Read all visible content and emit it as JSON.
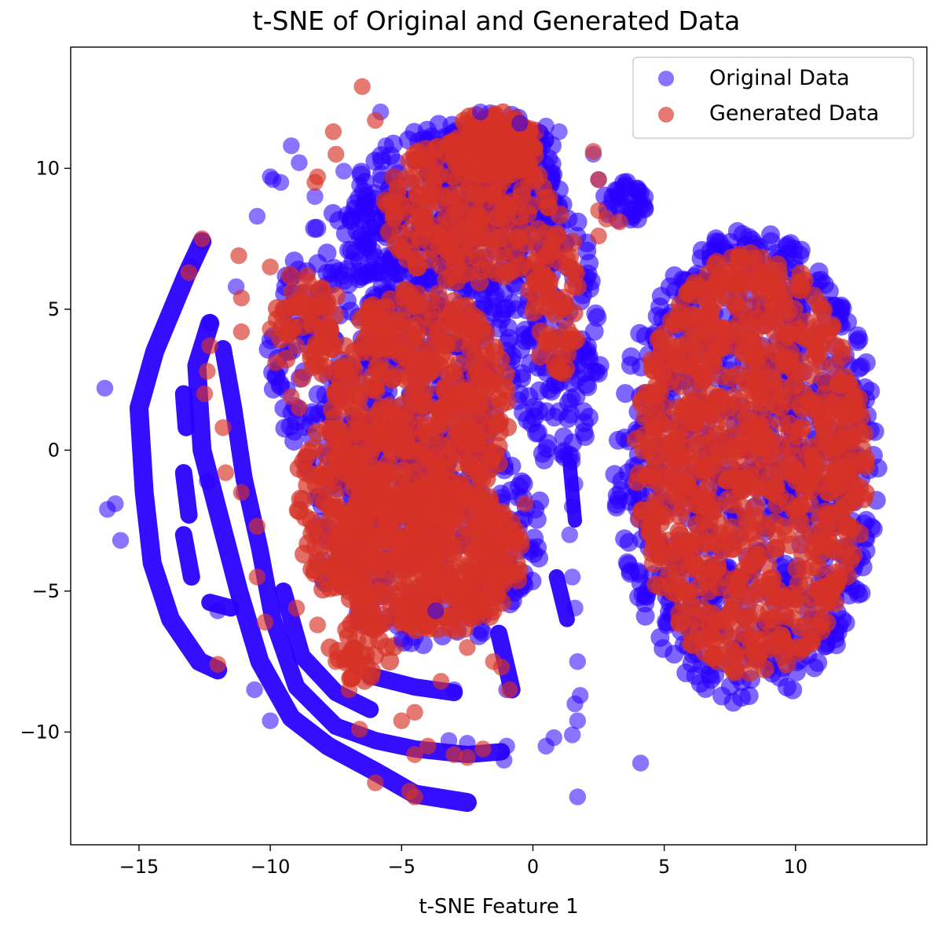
{
  "chart_data": {
    "type": "scatter",
    "title": "t-SNE of Original and Generated Data",
    "xlabel": "t-SNE Feature 1",
    "ylabel": "",
    "xlim": [
      -17.6,
      15.0
    ],
    "ylim": [
      -14.0,
      14.3
    ],
    "xticks": [
      -15,
      -10,
      -5,
      0,
      5,
      10
    ],
    "yticks": [
      -10,
      -5,
      0,
      5,
      10
    ],
    "xtick_labels": [
      "−15",
      "−10",
      "−5",
      "0",
      "5",
      "10"
    ],
    "ytick_labels": [
      "−10",
      "−5",
      "0",
      "5",
      "10"
    ],
    "grid": false,
    "legend_position": "top-right",
    "series": [
      {
        "name": "Original Data",
        "color": "#2a00ff",
        "alpha": 0.55,
        "marker_radius": 0.32,
        "points": [
          [
            -16.3,
            2.2
          ],
          [
            -16.2,
            -2.1
          ],
          [
            -15.9,
            -1.9
          ],
          [
            -15.7,
            -3.2
          ],
          [
            -13.0,
            6.5
          ],
          [
            -12.6,
            7.4
          ],
          [
            -12.3,
            4.5
          ],
          [
            -11.3,
            5.8
          ],
          [
            -10.5,
            8.3
          ],
          [
            -10.0,
            9.7
          ],
          [
            -9.9,
            9.6
          ],
          [
            -9.2,
            10.8
          ],
          [
            -8.9,
            10.2
          ],
          [
            -9.6,
            9.5
          ],
          [
            -8.3,
            9.0
          ],
          [
            -7.2,
            9.9
          ],
          [
            -6.6,
            9.4
          ],
          [
            -5.8,
            12.0
          ],
          [
            -5.6,
            10.8
          ],
          [
            -2.0,
            12.0
          ],
          [
            -0.5,
            11.6
          ],
          [
            0.5,
            11.5
          ],
          [
            1.0,
            11.3
          ],
          [
            2.3,
            10.5
          ],
          [
            2.5,
            9.6
          ],
          [
            3.0,
            9.0
          ],
          [
            3.4,
            8.7
          ],
          [
            4.0,
            9.3
          ],
          [
            1.5,
            -0.4
          ],
          [
            1.6,
            -1.2
          ],
          [
            1.5,
            -2.0
          ],
          [
            1.4,
            -3.0
          ],
          [
            1.5,
            -4.5
          ],
          [
            1.6,
            -5.6
          ],
          [
            1.7,
            -7.5
          ],
          [
            1.8,
            -8.7
          ],
          [
            1.6,
            -9.0
          ],
          [
            1.7,
            -9.6
          ],
          [
            1.5,
            -10.1
          ],
          [
            0.8,
            -10.2
          ],
          [
            0.5,
            -10.5
          ],
          [
            -1.0,
            -10.5
          ],
          [
            -1.1,
            -11.0
          ],
          [
            -2.5,
            -10.4
          ],
          [
            -3.2,
            -10.3
          ],
          [
            -10.6,
            -8.5
          ],
          [
            -10.0,
            -9.6
          ],
          [
            -11.0,
            -1.5
          ],
          [
            -12.4,
            -1.1
          ],
          [
            -12.0,
            -5.7
          ],
          [
            -3.0,
            -8.5
          ],
          [
            -5.0,
            -6.7
          ],
          [
            -3.7,
            -5.7
          ],
          [
            -1.0,
            -8.5
          ],
          [
            1.7,
            -12.3
          ],
          [
            4.1,
            -11.1
          ]
        ]
      },
      {
        "name": "Generated Data",
        "color": "#d63227",
        "alpha": 0.65,
        "marker_radius": 0.32,
        "points": [
          [
            -6.5,
            12.9
          ],
          [
            -6.0,
            11.7
          ],
          [
            -7.6,
            11.3
          ],
          [
            -7.5,
            10.5
          ],
          [
            -8.2,
            9.7
          ],
          [
            -8.3,
            9.5
          ],
          [
            -11.2,
            6.9
          ],
          [
            -12.6,
            7.5
          ],
          [
            -13.1,
            6.3
          ],
          [
            -11.1,
            5.4
          ],
          [
            -12.3,
            3.7
          ],
          [
            -12.4,
            2.8
          ],
          [
            -12.5,
            2.0
          ],
          [
            -11.8,
            0.8
          ],
          [
            -11.7,
            -0.8
          ],
          [
            -11.1,
            -1.5
          ],
          [
            -10.5,
            -2.7
          ],
          [
            -10.5,
            -4.5
          ],
          [
            -10.2,
            -6.1
          ],
          [
            -12.0,
            -7.6
          ],
          [
            -11.1,
            4.2
          ],
          [
            -10.0,
            6.5
          ],
          [
            -10.0,
            4.3
          ],
          [
            -9.4,
            4.1
          ],
          [
            -9.0,
            3.7
          ],
          [
            -9.8,
            3.1
          ],
          [
            -9.2,
            1.9
          ],
          [
            -8.9,
            1.5
          ],
          [
            -8.6,
            6.2
          ],
          [
            -8.0,
            5.0
          ],
          [
            -8.1,
            3.0
          ],
          [
            2.3,
            10.6
          ],
          [
            2.5,
            9.6
          ],
          [
            2.5,
            8.5
          ],
          [
            2.8,
            8.2
          ],
          [
            2.5,
            7.6
          ],
          [
            3.3,
            8.1
          ],
          [
            -0.9,
            -8.5
          ],
          [
            -1.2,
            -7.7
          ],
          [
            -1.5,
            -7.5
          ],
          [
            -2.5,
            -7.0
          ],
          [
            -3.5,
            -8.2
          ],
          [
            -4.5,
            -9.3
          ],
          [
            -5.0,
            -9.6
          ],
          [
            -4.5,
            -10.8
          ],
          [
            -4.0,
            -10.5
          ],
          [
            -3.0,
            -10.8
          ],
          [
            -2.5,
            -10.9
          ],
          [
            -1.9,
            -10.6
          ],
          [
            -6.0,
            -11.8
          ],
          [
            -4.7,
            -12.1
          ],
          [
            -4.5,
            -12.3
          ],
          [
            -6.6,
            -9.9
          ],
          [
            -7.0,
            -8.5
          ],
          [
            -6.6,
            -7.7
          ],
          [
            -7.5,
            -7.5
          ],
          [
            -8.2,
            -6.2
          ],
          [
            -9.0,
            -5.6
          ],
          [
            -7.5,
            -4.5
          ],
          [
            -0.3,
            -1.9
          ]
        ]
      }
    ]
  }
}
